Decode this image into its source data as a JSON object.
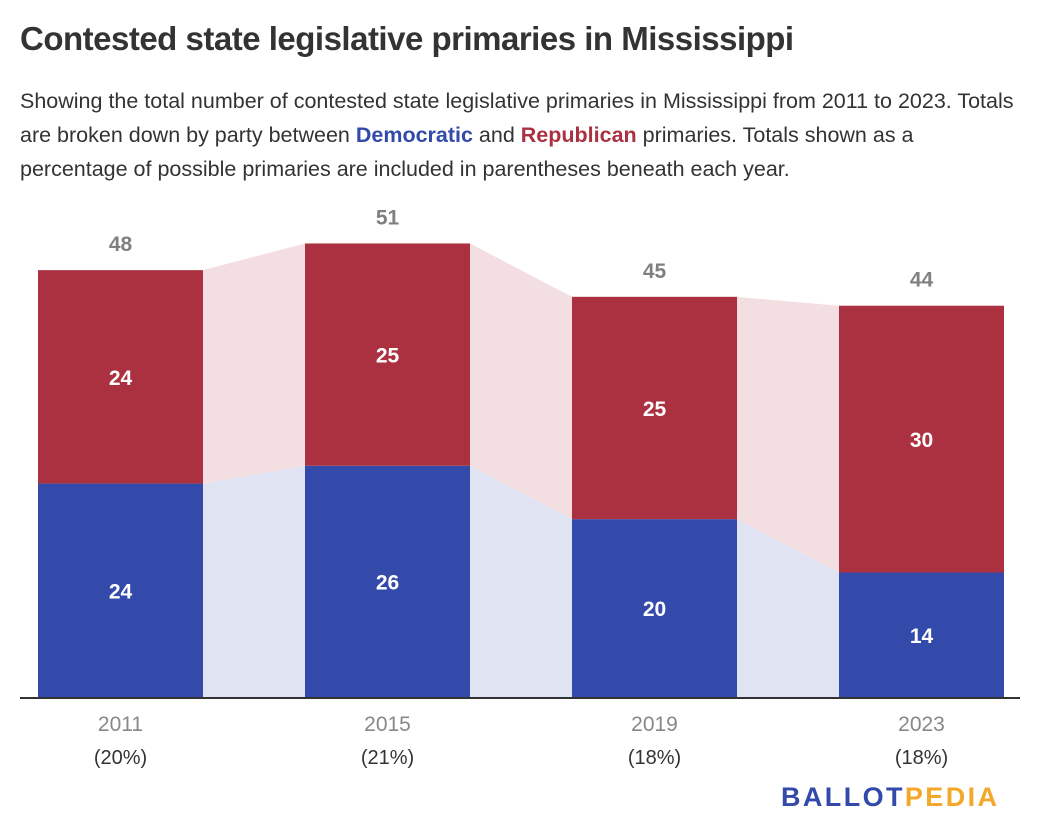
{
  "header": {
    "title": "Contested state legislative primaries in Mississippi",
    "subtitle_part1": "Showing the total number of contested state legislative primaries in Mississippi from 2011 to 2023. Totals are broken down by party between ",
    "subtitle_dem": "Democratic",
    "subtitle_part2": " and ",
    "subtitle_rep": "Republican",
    "subtitle_part3": " primaries. Totals shown as a percentage of possible primaries are included in parentheses beneath each year."
  },
  "colors": {
    "democratic": "#334aab",
    "republican": "#ab3141",
    "democratic_connector": "#e0e3f2",
    "republican_connector": "#f3dfe2",
    "axis": "#333333",
    "logo_ballot": "#334aab",
    "logo_pedia": "#f4a82a"
  },
  "chart_data": {
    "type": "bar",
    "stacked": true,
    "title": "Contested state legislative primaries in Mississippi",
    "xlabel": "",
    "ylabel": "",
    "categories": [
      "2011",
      "2015",
      "2019",
      "2023"
    ],
    "category_sublabels": [
      "(20%)",
      "(21%)",
      "(18%)",
      "(18%)"
    ],
    "series": [
      {
        "name": "Democratic",
        "values": [
          24,
          26,
          20,
          14
        ]
      },
      {
        "name": "Republican",
        "values": [
          24,
          25,
          25,
          30
        ]
      }
    ],
    "totals": [
      48,
      51,
      45,
      44
    ],
    "ylim": [
      0,
      56
    ],
    "grid": false,
    "legend": "inline-in-subtitle"
  },
  "branding": {
    "logo_part1": "BALLOT",
    "logo_part2": "PEDIA"
  }
}
